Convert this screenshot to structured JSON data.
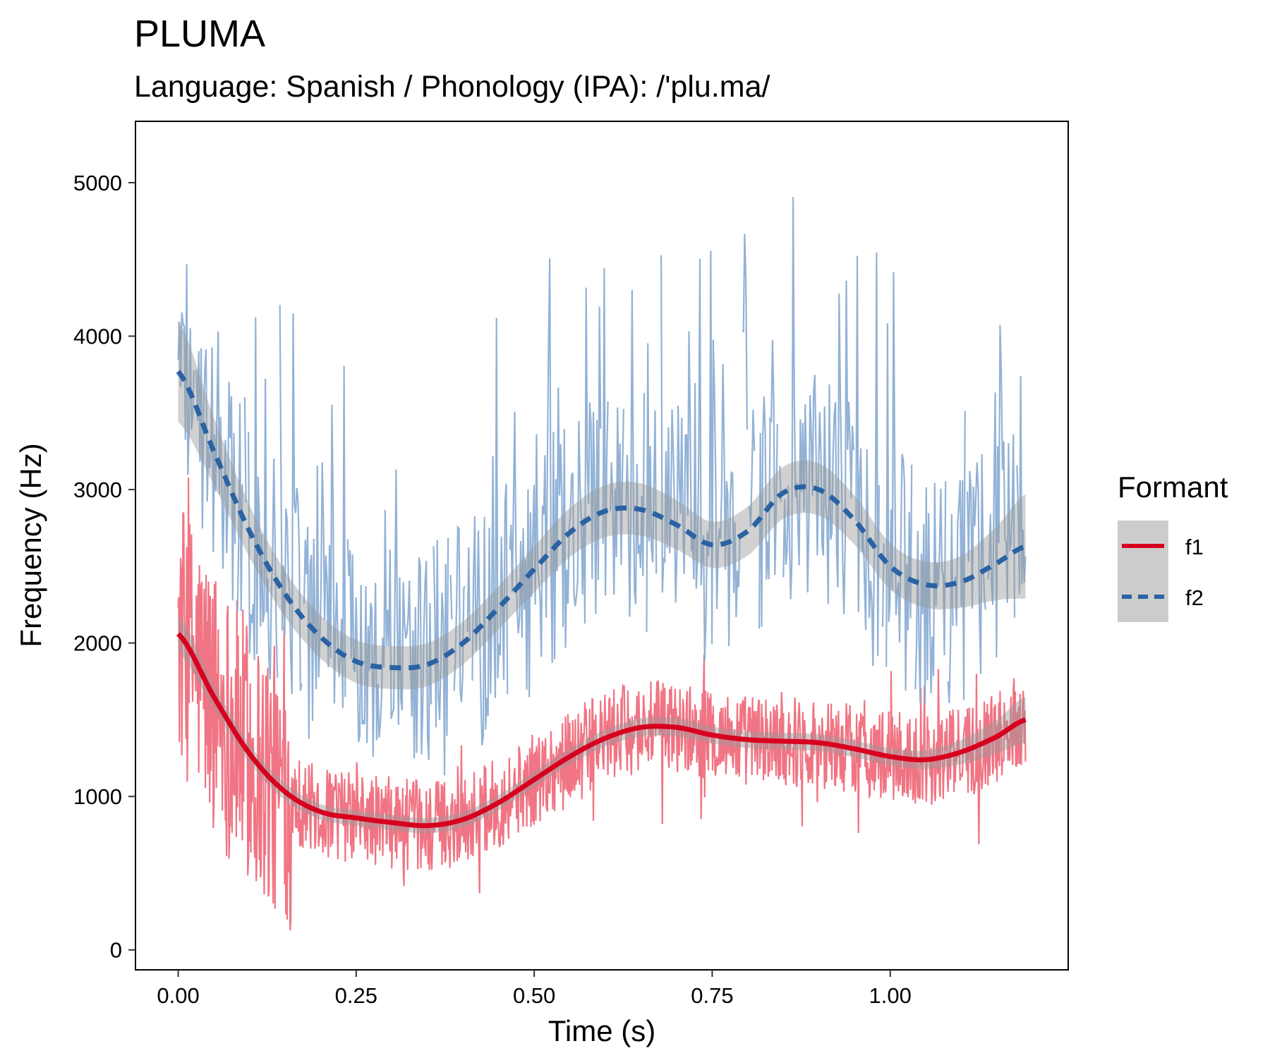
{
  "chart_data": {
    "type": "line",
    "title": "PLUMA",
    "subtitle": "Language: Spanish / Phonology (IPA): /'plu.ma/",
    "xlabel": "Time (s)",
    "ylabel": "Frequency (Hz)",
    "xlim": [
      -0.06,
      1.25
    ],
    "ylim": [
      -130,
      5400
    ],
    "x_ticks": [
      0.0,
      0.25,
      0.5,
      0.75,
      1.0
    ],
    "x_tick_labels": [
      "0.00",
      "0.25",
      "0.50",
      "0.75",
      "1.00"
    ],
    "y_ticks": [
      0,
      1000,
      2000,
      3000,
      4000,
      5000
    ],
    "y_tick_labels": [
      "0",
      "1000",
      "2000",
      "3000",
      "4000",
      "5000"
    ],
    "grid": false,
    "legend": {
      "title": "Formant",
      "position": "right",
      "entries": [
        {
          "label": "f1",
          "color": "#d7001f",
          "linestyle": "solid"
        },
        {
          "label": "f2",
          "color": "#2a62a3",
          "linestyle": "dashed"
        }
      ]
    },
    "x_range": [
      0.0,
      1.19
    ],
    "series": [
      {
        "name": "f1",
        "raw_color": "#ef6d7c",
        "smooth_color": "#d7001f",
        "linestyle": "solid",
        "smooth_x": [
          0.0,
          0.05,
          0.1,
          0.15,
          0.2,
          0.25,
          0.3,
          0.35,
          0.4,
          0.45,
          0.5,
          0.55,
          0.6,
          0.65,
          0.7,
          0.75,
          0.8,
          0.85,
          0.9,
          0.95,
          1.0,
          1.05,
          1.1,
          1.15,
          1.19
        ],
        "smooth_y": [
          2060,
          1650,
          1280,
          1030,
          900,
          860,
          830,
          810,
          850,
          960,
          1110,
          1260,
          1380,
          1450,
          1450,
          1400,
          1370,
          1360,
          1350,
          1310,
          1260,
          1240,
          1290,
          1390,
          1500
        ],
        "band_half_width": [
          120,
          80,
          60,
          55,
          50,
          50,
          50,
          50,
          50,
          50,
          50,
          50,
          55,
          60,
          60,
          55,
          55,
          55,
          55,
          55,
          55,
          60,
          80,
          110,
          150
        ]
      },
      {
        "name": "f2",
        "raw_color": "#8caed4",
        "smooth_color": "#2a62a3",
        "linestyle": "dashed",
        "smooth_x": [
          0.0,
          0.05,
          0.1,
          0.15,
          0.2,
          0.25,
          0.3,
          0.35,
          0.4,
          0.45,
          0.5,
          0.55,
          0.6,
          0.65,
          0.7,
          0.75,
          0.8,
          0.85,
          0.9,
          0.95,
          1.0,
          1.05,
          1.1,
          1.15,
          1.19
        ],
        "smooth_y": [
          3770,
          3250,
          2730,
          2320,
          2040,
          1880,
          1840,
          1860,
          2000,
          2230,
          2480,
          2720,
          2860,
          2870,
          2770,
          2640,
          2730,
          2980,
          3000,
          2800,
          2500,
          2380,
          2400,
          2520,
          2630
        ],
        "band_half_width": [
          330,
          220,
          170,
          150,
          140,
          140,
          140,
          140,
          140,
          140,
          150,
          160,
          170,
          170,
          160,
          150,
          160,
          170,
          170,
          160,
          150,
          150,
          170,
          240,
          340
        ]
      }
    ]
  }
}
